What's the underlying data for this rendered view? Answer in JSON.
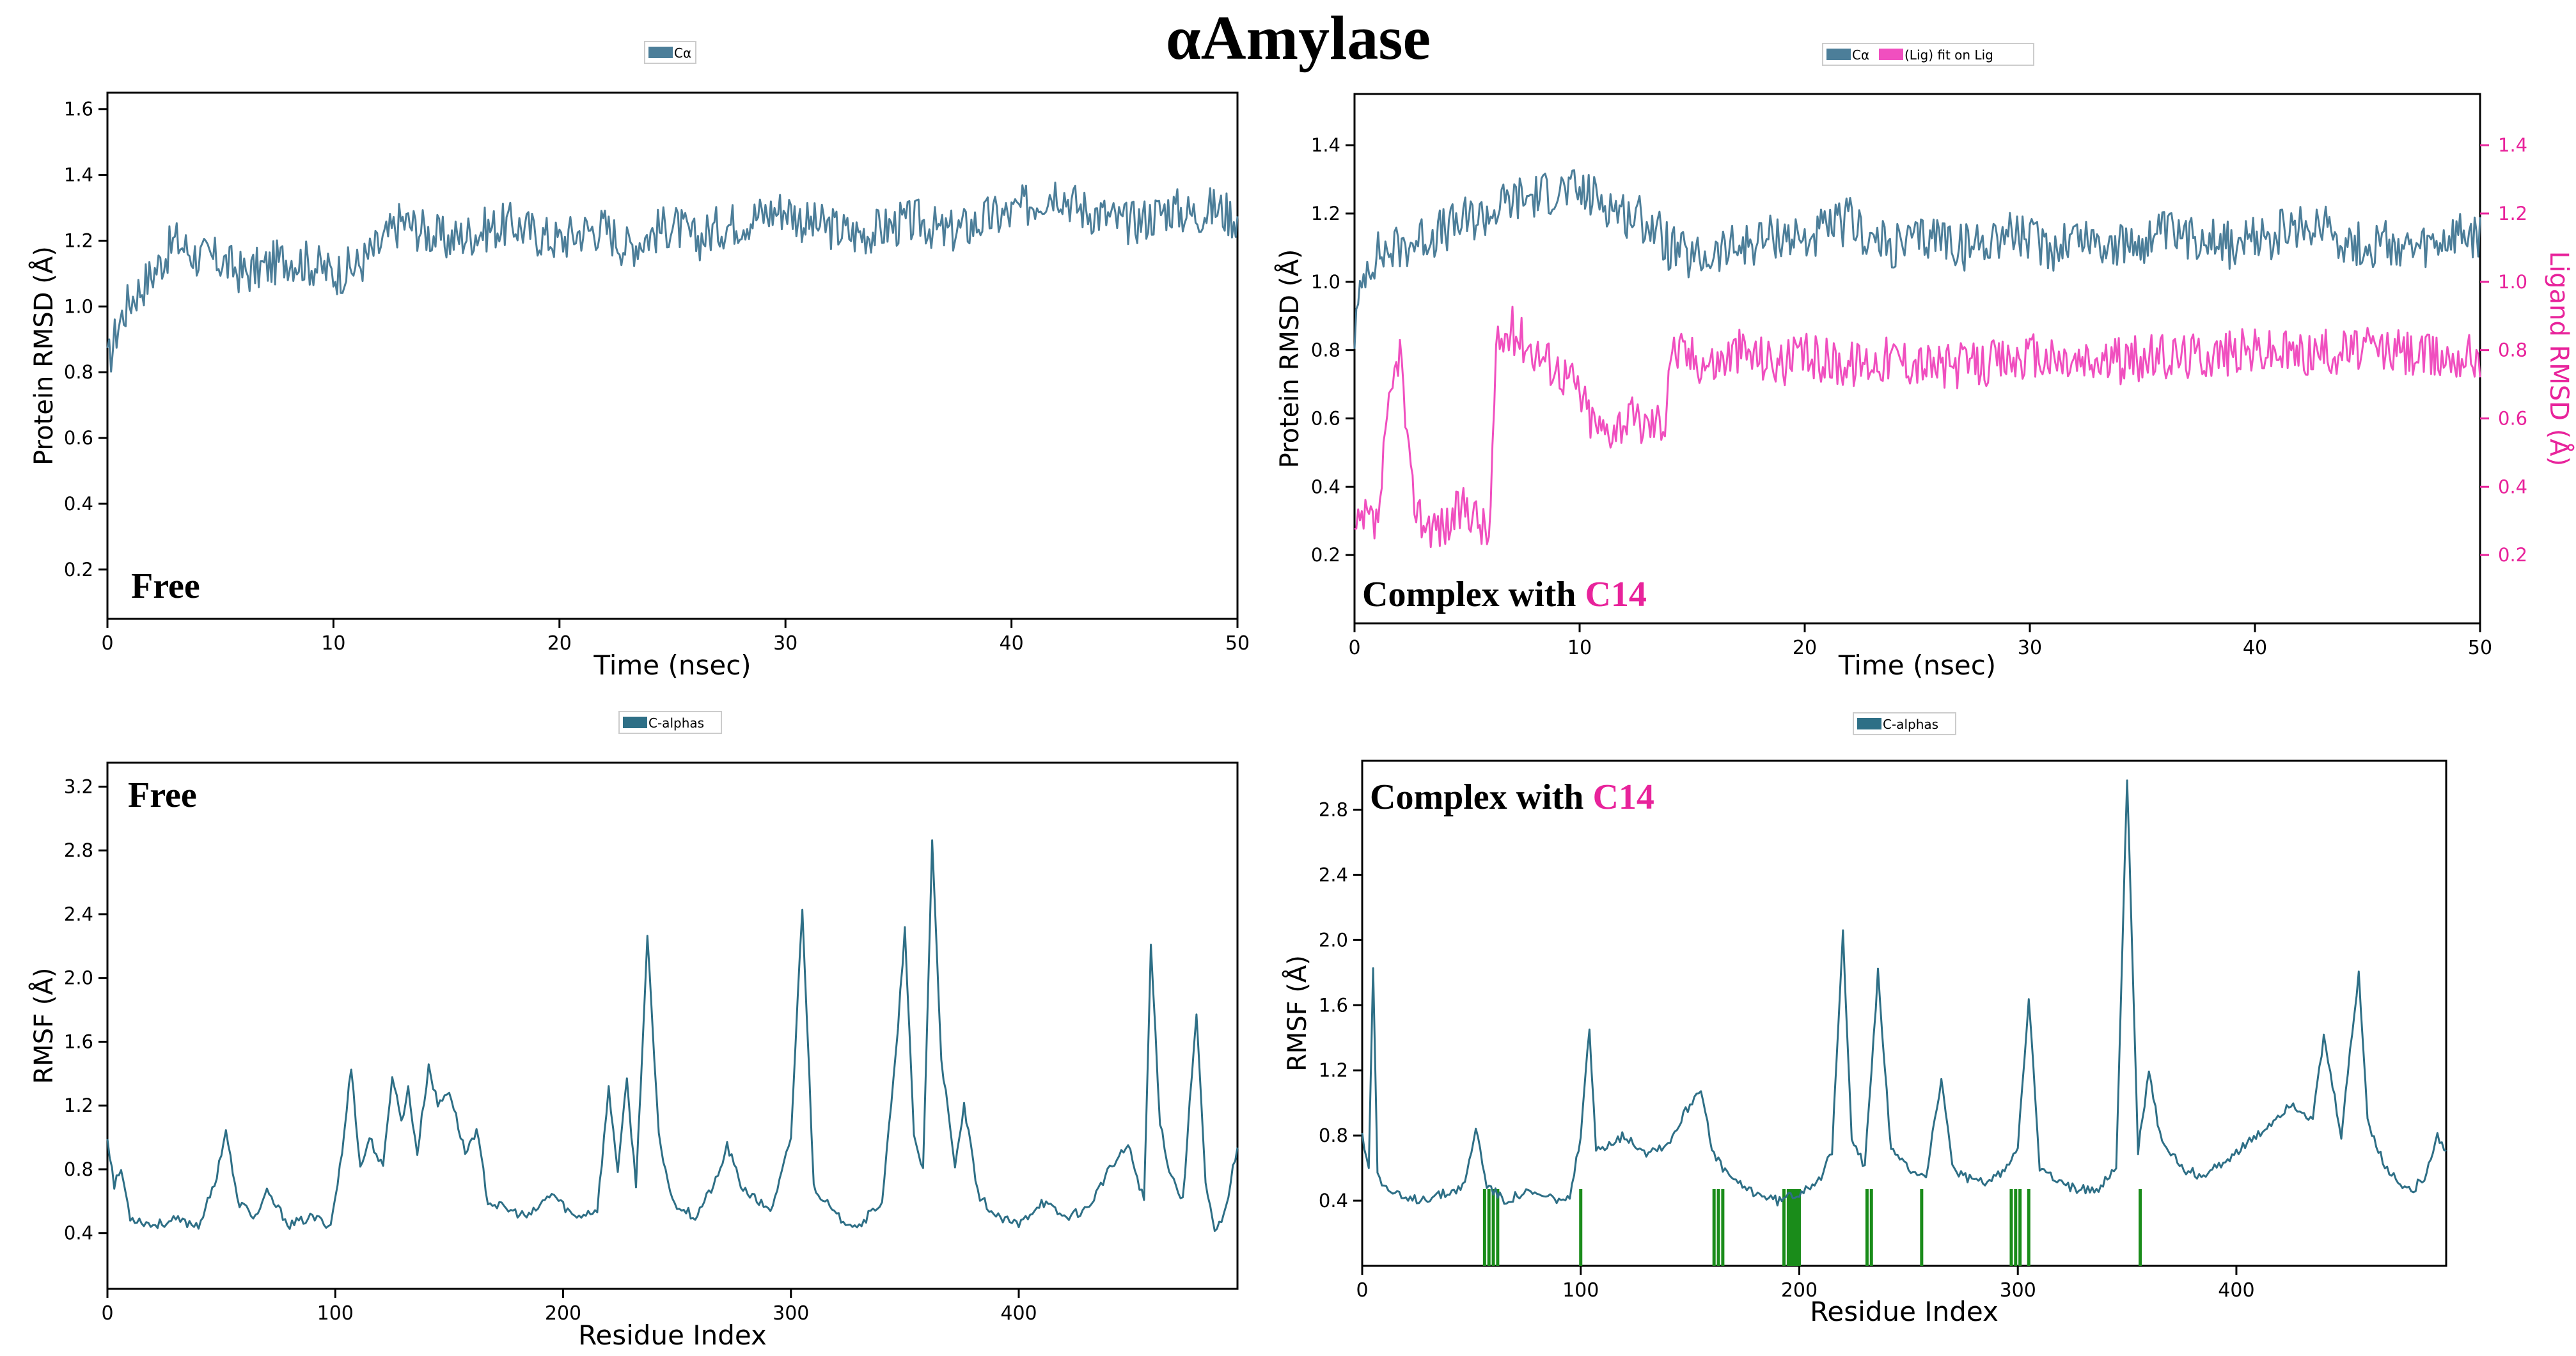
{
  "page_title": "αAmylase",
  "colors": {
    "protein": "#4c7e99",
    "ligand": "#f04fbf",
    "rmsf": "#2e6f86",
    "contacts": "#1a8c1a",
    "accent": "#e8239b",
    "axis": "#000000"
  },
  "chart_data": [
    {
      "id": "rmsd_free",
      "type": "line",
      "legend": [
        "Cα"
      ],
      "xlabel": "Time (nsec)",
      "ylabel": "Protein RMSD (Å)",
      "xlim": [
        0,
        50
      ],
      "ylim": [
        0.05,
        1.65
      ],
      "xticks": [
        0,
        10,
        20,
        30,
        40,
        50
      ],
      "yticks": [
        0.2,
        0.4,
        0.6,
        0.8,
        1.0,
        1.2,
        1.4,
        1.6
      ],
      "ytick_labels": [
        "0.2",
        "0.4",
        "0.6",
        "0.8",
        "1.0",
        "1.2",
        "1.4",
        "1.6"
      ],
      "annotation": "Free",
      "series": [
        {
          "name": "Cα",
          "color": "#4c7e99",
          "x": [
            0,
            0.5,
            1,
            2,
            3,
            4,
            5,
            6,
            7,
            8,
            9,
            10,
            11,
            12,
            13,
            14,
            15,
            16,
            17,
            18,
            19,
            20,
            21,
            22,
            23,
            24,
            25,
            26,
            27,
            28,
            29,
            30,
            31,
            32,
            33,
            34,
            35,
            36,
            37,
            38,
            39,
            40,
            41,
            42,
            43,
            44,
            45,
            46,
            47,
            48,
            49,
            50
          ],
          "y": [
            0.82,
            0.95,
            1.02,
            1.1,
            1.2,
            1.15,
            1.14,
            1.1,
            1.12,
            1.15,
            1.13,
            1.1,
            1.12,
            1.18,
            1.26,
            1.23,
            1.2,
            1.22,
            1.24,
            1.25,
            1.22,
            1.2,
            1.23,
            1.24,
            1.18,
            1.22,
            1.25,
            1.2,
            1.24,
            1.26,
            1.28,
            1.3,
            1.25,
            1.24,
            1.22,
            1.23,
            1.25,
            1.26,
            1.22,
            1.24,
            1.27,
            1.28,
            1.32,
            1.36,
            1.3,
            1.28,
            1.25,
            1.27,
            1.3,
            1.28,
            1.3,
            1.27
          ]
        }
      ]
    },
    {
      "id": "rmsd_complex",
      "type": "line",
      "legend": [
        "Cα",
        "(Lig) fit on Lig"
      ],
      "xlabel": "Time (nsec)",
      "ylabel": "Protein RMSD (Å)",
      "ylabel_right": "Ligand RMSD (Å)",
      "xlim": [
        0,
        50
      ],
      "ylim": [
        0.0,
        1.55
      ],
      "ylim_right": [
        0.0,
        1.55
      ],
      "xticks": [
        0,
        10,
        20,
        30,
        40,
        50
      ],
      "yticks": [
        0.2,
        0.4,
        0.6,
        0.8,
        1.0,
        1.2,
        1.4
      ],
      "ytick_labels": [
        "0.2",
        "0.4",
        "0.6",
        "0.8",
        "1.0",
        "1.2",
        "1.4"
      ],
      "annotation": [
        "Complex with ",
        "C14"
      ],
      "series": [
        {
          "name": "Cα",
          "color": "#4c7e99",
          "x": [
            0,
            0.5,
            1,
            2,
            3,
            4,
            5,
            6,
            7,
            8,
            9,
            10,
            11,
            12,
            13,
            14,
            15,
            16,
            17,
            18,
            19,
            20,
            21,
            22,
            23,
            24,
            25,
            26,
            27,
            28,
            29,
            30,
            31,
            32,
            33,
            34,
            35,
            36,
            37,
            38,
            39,
            40,
            41,
            42,
            43,
            44,
            45,
            46,
            47,
            48,
            49,
            50
          ],
          "y": [
            0.85,
            1.05,
            1.08,
            1.1,
            1.13,
            1.15,
            1.18,
            1.2,
            1.24,
            1.25,
            1.27,
            1.26,
            1.24,
            1.2,
            1.18,
            1.1,
            1.06,
            1.08,
            1.1,
            1.12,
            1.14,
            1.12,
            1.15,
            1.18,
            1.12,
            1.1,
            1.12,
            1.14,
            1.1,
            1.12,
            1.15,
            1.12,
            1.1,
            1.14,
            1.12,
            1.1,
            1.12,
            1.14,
            1.12,
            1.15,
            1.1,
            1.12,
            1.14,
            1.15,
            1.18,
            1.12,
            1.1,
            1.12,
            1.08,
            1.1,
            1.13,
            1.12
          ]
        },
        {
          "name": "(Lig) fit on Lig",
          "color": "#f04fbf",
          "axis": "right",
          "x": [
            0,
            0.5,
            1,
            1.5,
            2,
            2.5,
            3,
            4,
            5,
            6,
            6.3,
            7,
            8,
            9,
            9.8,
            10.5,
            11,
            12,
            13,
            13.8,
            14,
            15,
            16,
            17,
            18,
            19,
            20,
            22,
            24,
            26,
            28,
            30,
            32,
            34,
            36,
            38,
            40,
            42,
            44,
            46,
            48,
            50
          ],
          "y": [
            0.25,
            0.3,
            0.28,
            0.6,
            0.82,
            0.4,
            0.3,
            0.28,
            0.35,
            0.25,
            0.8,
            0.86,
            0.8,
            0.75,
            0.7,
            0.6,
            0.56,
            0.6,
            0.58,
            0.6,
            0.8,
            0.78,
            0.76,
            0.8,
            0.78,
            0.76,
            0.78,
            0.76,
            0.78,
            0.75,
            0.76,
            0.78,
            0.76,
            0.77,
            0.78,
            0.79,
            0.8,
            0.79,
            0.8,
            0.8,
            0.78,
            0.79
          ]
        }
      ]
    },
    {
      "id": "rmsf_free",
      "type": "line",
      "legend": [
        "C-alphas"
      ],
      "xlabel": "Residue Index",
      "ylabel": "RMSF (Å)",
      "xlim": [
        0,
        496
      ],
      "ylim": [
        0.05,
        3.35
      ],
      "xticks": [
        0,
        100,
        200,
        300,
        400
      ],
      "yticks": [
        0.4,
        0.8,
        1.2,
        1.6,
        2.0,
        2.4,
        2.8,
        3.2
      ],
      "ytick_labels": [
        "0.4",
        "0.8",
        "1.2",
        "1.6",
        "2.0",
        "2.4",
        "2.8",
        "3.2"
      ],
      "annotation": "Free",
      "series": [
        {
          "name": "C-alphas",
          "color": "#2e6f86",
          "x": [
            0,
            3,
            6,
            10,
            20,
            30,
            40,
            47,
            52,
            57,
            65,
            70,
            80,
            90,
            98,
            103,
            107,
            111,
            115,
            121,
            125,
            129,
            132,
            136,
            141,
            145,
            150,
            157,
            162,
            167,
            175,
            185,
            195,
            205,
            215,
            220,
            224,
            228,
            232,
            237,
            242,
            248,
            258,
            268,
            272,
            278,
            285,
            292,
            300,
            305,
            310,
            320,
            330,
            340,
            346,
            350,
            354,
            358,
            362,
            366,
            372,
            376,
            382,
            390,
            400,
            410,
            420,
            430,
            440,
            448,
            455,
            458,
            462,
            466,
            472,
            478,
            482,
            486,
            490,
            496
          ],
          "y": [
            1.0,
            0.7,
            0.8,
            0.5,
            0.45,
            0.48,
            0.45,
            0.7,
            1.05,
            0.6,
            0.5,
            0.65,
            0.45,
            0.5,
            0.45,
            0.9,
            1.45,
            0.8,
            1.0,
            0.8,
            1.4,
            1.1,
            1.3,
            0.9,
            1.45,
            1.2,
            1.3,
            0.9,
            1.05,
            0.6,
            0.55,
            0.5,
            0.65,
            0.5,
            0.55,
            1.3,
            0.8,
            1.35,
            0.7,
            2.25,
            1.0,
            0.6,
            0.5,
            0.75,
            0.95,
            0.7,
            0.6,
            0.55,
            1.0,
            2.45,
            0.7,
            0.5,
            0.45,
            0.6,
            1.5,
            2.3,
            1.0,
            0.8,
            2.85,
            1.5,
            0.8,
            1.2,
            0.65,
            0.5,
            0.45,
            0.6,
            0.5,
            0.55,
            0.8,
            0.95,
            0.6,
            2.2,
            1.1,
            0.8,
            0.6,
            1.8,
            0.7,
            0.4,
            0.5,
            0.95
          ]
        }
      ]
    },
    {
      "id": "rmsf_complex",
      "type": "line",
      "legend": [
        "C-alphas"
      ],
      "xlabel": "Residue Index",
      "ylabel": "RMSF (Å)",
      "xlim": [
        0,
        496
      ],
      "ylim": [
        0.0,
        3.1
      ],
      "xticks": [
        0,
        100,
        200,
        300,
        400
      ],
      "yticks": [
        0.4,
        0.8,
        1.2,
        1.6,
        2.0,
        2.4,
        2.8
      ],
      "ytick_labels": [
        "0.4",
        "0.8",
        "1.2",
        "1.6",
        "2.0",
        "2.4",
        "2.8"
      ],
      "annotation": [
        "Complex with ",
        "C14"
      ],
      "contacts": [
        56,
        58,
        60,
        62,
        100,
        161,
        163,
        165,
        193,
        195,
        196,
        197,
        198,
        199,
        200,
        231,
        233,
        256,
        297,
        299,
        301,
        305,
        356
      ],
      "series": [
        {
          "name": "C-alphas",
          "color": "#2e6f86",
          "x": [
            0,
            3,
            5,
            7,
            9,
            14,
            20,
            30,
            40,
            47,
            52,
            57,
            65,
            75,
            85,
            95,
            100,
            104,
            107,
            112,
            120,
            130,
            140,
            148,
            155,
            160,
            165,
            172,
            180,
            190,
            200,
            210,
            215,
            220,
            224,
            230,
            236,
            242,
            250,
            258,
            265,
            270,
            275,
            285,
            295,
            300,
            305,
            310,
            320,
            335,
            345,
            350,
            355,
            360,
            365,
            375,
            385,
            395,
            410,
            425,
            435,
            440,
            448,
            456,
            460,
            468,
            476,
            480,
            486,
            492,
            496
          ],
          "y": [
            0.8,
            0.6,
            1.85,
            0.6,
            0.5,
            0.45,
            0.4,
            0.42,
            0.45,
            0.5,
            0.85,
            0.5,
            0.4,
            0.45,
            0.42,
            0.4,
            0.8,
            1.45,
            0.7,
            0.75,
            0.8,
            0.7,
            0.75,
            0.95,
            1.1,
            0.7,
            0.6,
            0.5,
            0.45,
            0.4,
            0.45,
            0.55,
            0.7,
            2.05,
            0.8,
            0.6,
            1.8,
            0.7,
            0.6,
            0.55,
            1.15,
            0.6,
            0.55,
            0.5,
            0.6,
            0.75,
            1.65,
            0.6,
            0.5,
            0.45,
            0.6,
            3.0,
            0.7,
            1.2,
            0.8,
            0.6,
            0.55,
            0.65,
            0.8,
            1.0,
            0.9,
            1.4,
            0.8,
            1.8,
            0.9,
            0.6,
            0.5,
            0.45,
            0.55,
            0.8,
            0.7
          ]
        }
      ]
    }
  ]
}
